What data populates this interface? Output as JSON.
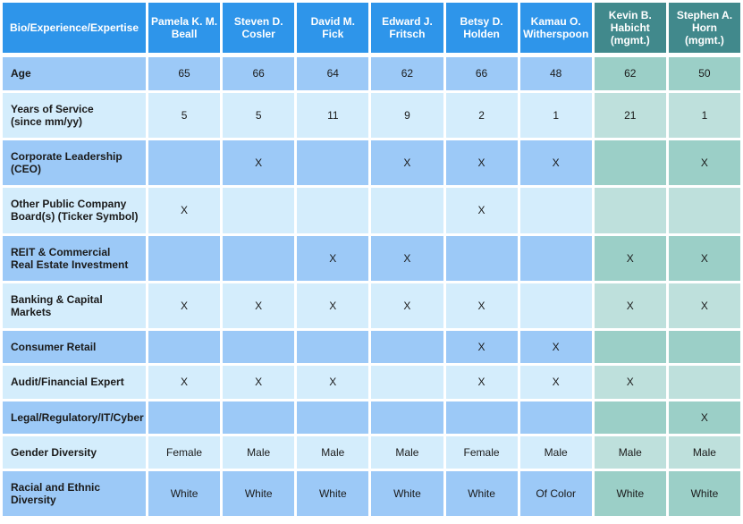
{
  "colors": {
    "header_blue": "#2E95EA",
    "header_teal": "#41898C",
    "row_blue_dark": "#9CC9F7",
    "row_blue_light": "#D4EDFC",
    "row_teal_dark": "#9BCFC7",
    "row_teal_light": "#BEE0DC",
    "header_text": "#FFFFFF",
    "body_text": "#1A1A1A",
    "grid": "#FFFFFF"
  },
  "table": {
    "corner_header": "Bio/Experience/Expertise",
    "columns": [
      {
        "label": "Pamela K. M. Beall",
        "group": "director"
      },
      {
        "label": "Steven D. Cosler",
        "group": "director"
      },
      {
        "label": "David M. Fick",
        "group": "director"
      },
      {
        "label": "Edward J. Fritsch",
        "group": "director"
      },
      {
        "label": "Betsy D. Holden",
        "group": "director"
      },
      {
        "label": "Kamau O. Witherspoon",
        "group": "director"
      },
      {
        "label": "Kevin B. Habicht\n(mgmt.)",
        "group": "management"
      },
      {
        "label": "Stephen A. Horn\n(mgmt.)",
        "group": "management"
      }
    ],
    "rows": [
      {
        "label": "Age",
        "shade": "dark",
        "values": [
          "65",
          "66",
          "64",
          "62",
          "66",
          "48",
          "62",
          "50"
        ]
      },
      {
        "label": "Years of Service\n(since mm/yy)",
        "shade": "light",
        "values": [
          "5",
          "5",
          "11",
          "9",
          "2",
          "1",
          "21",
          "1"
        ]
      },
      {
        "label": "Corporate Leadership\n(CEO)",
        "shade": "dark",
        "values": [
          "",
          "X",
          "",
          "X",
          "X",
          "X",
          "",
          "X"
        ]
      },
      {
        "label": "Other Public Company\nBoard(s) (Ticker Symbol)",
        "shade": "light",
        "values": [
          "X",
          "",
          "",
          "",
          "X",
          "",
          "",
          ""
        ]
      },
      {
        "label": "REIT & Commercial\nReal Estate Investment",
        "shade": "dark",
        "values": [
          "",
          "",
          "X",
          "X",
          "",
          "",
          "X",
          "X"
        ]
      },
      {
        "label": "Banking & Capital\nMarkets",
        "shade": "light",
        "values": [
          "X",
          "X",
          "X",
          "X",
          "X",
          "",
          "X",
          "X"
        ]
      },
      {
        "label": "Consumer Retail",
        "shade": "dark",
        "values": [
          "",
          "",
          "",
          "",
          "X",
          "X",
          "",
          ""
        ]
      },
      {
        "label": "Audit/Financial Expert",
        "shade": "light",
        "values": [
          "X",
          "X",
          "X",
          "",
          "X",
          "X",
          "X",
          ""
        ]
      },
      {
        "label": "Legal/Regulatory/IT/Cyber",
        "shade": "dark",
        "values": [
          "",
          "",
          "",
          "",
          "",
          "",
          "",
          "X"
        ]
      },
      {
        "label": "Gender Diversity",
        "shade": "light",
        "values": [
          "Female",
          "Male",
          "Male",
          "Male",
          "Female",
          "Male",
          "Male",
          "Male"
        ]
      },
      {
        "label": "Racial and Ethnic Diversity",
        "shade": "dark",
        "values": [
          "White",
          "White",
          "White",
          "White",
          "White",
          "Of Color",
          "White",
          "White"
        ]
      }
    ]
  }
}
